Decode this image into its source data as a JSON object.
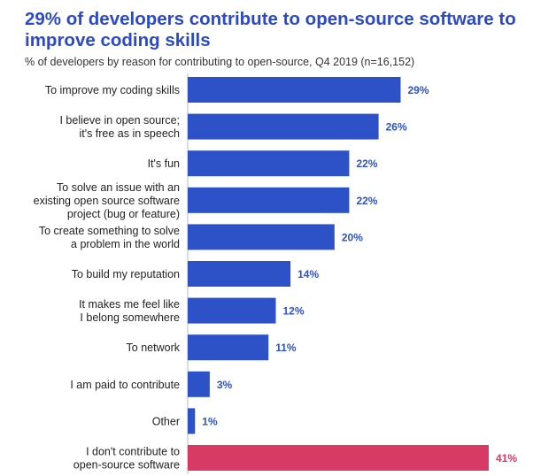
{
  "chart_data": {
    "type": "bar",
    "orientation": "horizontal",
    "title": "29% of developers contribute to open-source software to improve coding skills",
    "subtitle": "% of developers by reason for contributing to open-source, Q4 2019 (n=16,152)",
    "categories": [
      [
        "To improve my coding skills"
      ],
      [
        "I believe in open source;",
        "it's free as in speech"
      ],
      [
        "It's fun"
      ],
      [
        "To solve an issue with an",
        "existing open source software",
        "project (bug or feature)"
      ],
      [
        "To create something to solve",
        "a problem in the world"
      ],
      [
        "To build my reputation"
      ],
      [
        "It makes me feel like",
        "I belong somewhere"
      ],
      [
        "To network"
      ],
      [
        "I am paid to contribute"
      ],
      [
        "Other"
      ],
      [
        "I don't contribute to",
        "open-source software"
      ]
    ],
    "values": [
      29,
      26,
      22,
      22,
      20,
      14,
      12,
      11,
      3,
      1,
      41
    ],
    "value_labels": [
      "29%",
      "26%",
      "22%",
      "22%",
      "20%",
      "14%",
      "12%",
      "11%",
      "3%",
      "1%",
      "41%"
    ],
    "highlight_index": 10,
    "xlim": [
      0,
      41
    ],
    "colors": {
      "primary": "#2d52c8",
      "highlight": "#d63a65",
      "title": "#2c4ac8"
    }
  }
}
